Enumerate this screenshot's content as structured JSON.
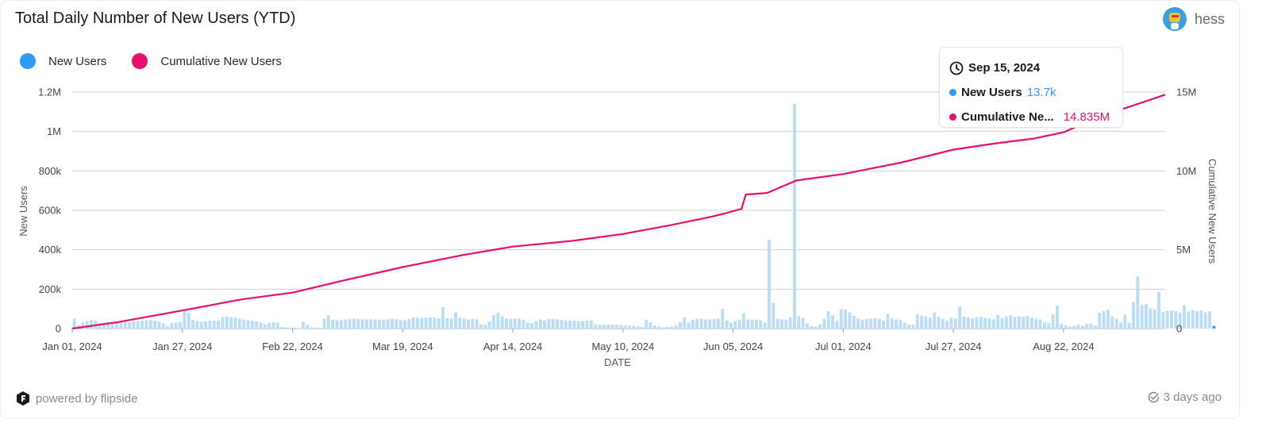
{
  "header": {
    "title": "Total Daily Number of New Users (YTD)",
    "username": "hess"
  },
  "legend": [
    {
      "label": "New Users",
      "color": "#2f9cf4"
    },
    {
      "label": "Cumulative New Users",
      "color": "#e5106e"
    }
  ],
  "tooltip": {
    "date": "Sep 15, 2024",
    "rows": [
      {
        "label": "New Users",
        "value": "13.7k",
        "color": "#2f9cf4"
      },
      {
        "label": "Cumulative Ne...",
        "value": "14.835M",
        "color": "#e5106e"
      }
    ]
  },
  "footer": {
    "powered_by": "powered by flipside",
    "updated": "3 days ago"
  },
  "chart_data": {
    "type": "bar+line",
    "xlabel": "DATE",
    "ylabel_left": "New Users",
    "ylabel_right": "Cumulative New Users",
    "ylim_left": [
      0,
      1200000
    ],
    "ylim_right": [
      0,
      15000000
    ],
    "left_ticks": [
      "0",
      "200k",
      "400k",
      "600k",
      "800k",
      "1M",
      "1.2M"
    ],
    "right_ticks": [
      "0",
      "5M",
      "10M",
      "15M"
    ],
    "x_ticks": [
      "Jan 01, 2024",
      "Jan 27, 2024",
      "Feb 22, 2024",
      "Mar 19, 2024",
      "Apr 14, 2024",
      "May 10, 2024",
      "Jun 05, 2024",
      "Jul 01, 2024",
      "Jul 27, 2024",
      "Aug 22, 2024"
    ],
    "grid": true,
    "legend_position": "top-left",
    "start_date": "2024-01-01",
    "series": [
      {
        "name": "New Users",
        "kind": "bar",
        "color": "#b9dcf7",
        "values": [
          50000,
          18000,
          32000,
          38000,
          42000,
          40000,
          27000,
          30000,
          32000,
          30000,
          31000,
          33000,
          34000,
          32000,
          36000,
          38000,
          40000,
          42000,
          44000,
          40000,
          36000,
          26000,
          12000,
          28000,
          30000,
          34000,
          88000,
          80000,
          44000,
          38000,
          34000,
          37000,
          40000,
          40000,
          42000,
          58000,
          62000,
          58000,
          55000,
          50000,
          46000,
          42000,
          40000,
          36000,
          30000,
          22000,
          28000,
          32000,
          30000,
          8000,
          6000,
          5000,
          4000,
          3000,
          34000,
          20000,
          6000,
          4000,
          3000,
          50000,
          68000,
          44000,
          42000,
          44000,
          46000,
          48000,
          50000,
          48000,
          48000,
          46000,
          47000,
          46000,
          44000,
          46000,
          47000,
          50000,
          48000,
          42000,
          44000,
          48000,
          56000,
          54000,
          52000,
          54000,
          56000,
          56000,
          52000,
          108000,
          52000,
          50000,
          82000,
          54000,
          50000,
          46000,
          48000,
          47000,
          22000,
          20000,
          36000,
          68000,
          80000,
          62000,
          52000,
          50000,
          51000,
          50000,
          44000,
          30000,
          28000,
          38000,
          46000,
          42000,
          48000,
          50000,
          47000,
          44000,
          42000,
          40000,
          40000,
          38000,
          38000,
          40000,
          42000,
          22000,
          20000,
          20000,
          20000,
          20000,
          20000,
          18000,
          16000,
          15000,
          14000,
          10000,
          8000,
          44000,
          32000,
          16000,
          10000,
          6000,
          8000,
          10000,
          16000,
          32000,
          56000,
          30000,
          44000,
          50000,
          50000,
          46000,
          46000,
          48000,
          50000,
          100000,
          42000,
          30000,
          38000,
          44000,
          78000,
          46000,
          46000,
          46000,
          42000,
          30000,
          450000,
          130000,
          50000,
          46000,
          44000,
          58000,
          1140000,
          62000,
          54000,
          26000,
          12000,
          10000,
          22000,
          50000,
          88000,
          68000,
          40000,
          98000,
          96000,
          82000,
          64000,
          50000,
          44000,
          48000,
          50000,
          54000,
          50000,
          40000,
          74000,
          52000,
          46000,
          44000,
          30000,
          20000,
          20000,
          72000,
          66000,
          62000,
          56000,
          82000,
          60000,
          50000,
          40000,
          56000,
          50000,
          110000,
          60000,
          56000,
          50000,
          58000,
          60000,
          54000,
          50000,
          46000,
          70000,
          54000,
          62000,
          66000,
          58000,
          62000,
          60000,
          64000,
          56000,
          48000,
          46000,
          32000,
          28000,
          72000,
          116000,
          26000,
          16000,
          10000,
          14000,
          20000,
          14000,
          24000,
          26000,
          16000,
          80000,
          88000,
          96000,
          62000,
          50000,
          30000,
          70000,
          28000,
          136000,
          264000,
          120000,
          124000,
          102000,
          98000,
          186000,
          84000,
          90000,
          92000,
          88000,
          82000,
          118000,
          86000,
          94000,
          88000,
          92000,
          82000,
          88000,
          13700
        ]
      },
      {
        "name": "Cumulative New Users",
        "kind": "line",
        "color": "#e5106e",
        "dates": [
          "2024-01-01",
          "2024-01-12",
          "2024-01-27",
          "2024-02-10",
          "2024-02-22",
          "2024-03-05",
          "2024-03-19",
          "2024-04-02",
          "2024-04-14",
          "2024-04-28",
          "2024-05-10",
          "2024-05-21",
          "2024-05-31",
          "2024-06-03",
          "2024-06-07",
          "2024-06-08",
          "2024-06-13",
          "2024-06-20",
          "2024-07-01",
          "2024-07-15",
          "2024-07-27",
          "2024-08-06",
          "2024-08-15",
          "2024-08-22",
          "2024-08-30",
          "2024-09-08",
          "2024-09-15"
        ],
        "values": [
          0,
          420000,
          1150000,
          1850000,
          2280000,
          3050000,
          3900000,
          4650000,
          5200000,
          5560000,
          6000000,
          6550000,
          7100000,
          7300000,
          7600000,
          8500000,
          8600000,
          9400000,
          9800000,
          10550000,
          11350000,
          11750000,
          12050000,
          12450000,
          13400000,
          14200000,
          14835000
        ]
      }
    ]
  }
}
